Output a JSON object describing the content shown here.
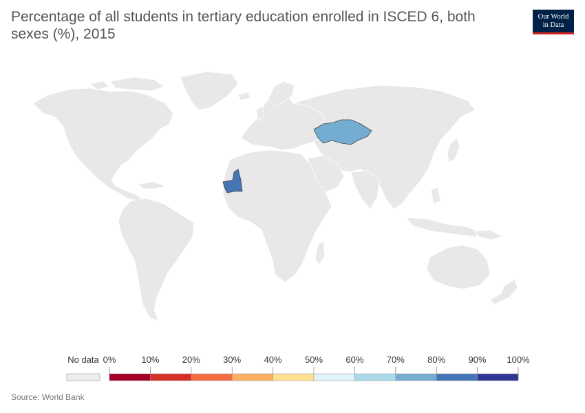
{
  "title": "Percentage of all students in tertiary education enrolled in ISCED 6, both sexes (%), 2015",
  "logo": {
    "line1": "Our World",
    "line2": "in Data"
  },
  "source": "Source: World Bank",
  "colors": {
    "land": "#e8e8e8",
    "border": "#ffffff",
    "kazakhstan": "#74add1",
    "mauritania": "#4575b4"
  },
  "legend": {
    "no_data_label": "No data",
    "ticks": [
      "0%",
      "10%",
      "20%",
      "30%",
      "40%",
      "50%",
      "60%",
      "70%",
      "80%",
      "90%",
      "100%"
    ],
    "bins": [
      "#a50026",
      "#d73027",
      "#f46d43",
      "#fdae61",
      "#fee090",
      "#e0f3f8",
      "#abd9e9",
      "#74add1",
      "#4575b4",
      "#313695"
    ],
    "no_data_color": "#eeeeee"
  },
  "chart_data": {
    "type": "map",
    "title": "Percentage of all students in tertiary education enrolled in ISCED 6, both sexes (%), 2015",
    "year": 2015,
    "unit": "%",
    "scale": [
      "0%",
      "10%",
      "20%",
      "30%",
      "40%",
      "50%",
      "60%",
      "70%",
      "80%",
      "90%",
      "100%"
    ],
    "regions_with_data": [
      {
        "name": "Kazakhstan",
        "bin": "70%-80%"
      },
      {
        "name": "Mauritania",
        "bin": "80%-90%"
      }
    ]
  }
}
